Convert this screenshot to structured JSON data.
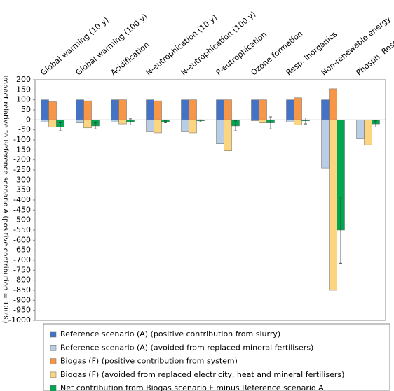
{
  "chart_data": {
    "type": "bar",
    "y_label": "Impact relative to Reference scenario A (positive contribution = 100%)",
    "categories": [
      "Global warming (10 y)",
      "Global warming (100 y)",
      "Acidification",
      "N-eutrophication (10 y)",
      "N-eutrophication (100 y)",
      "P-eutrophication",
      "Ozone formation",
      "Resp. Inorganics",
      "Non-renewable energy",
      "Phosph. Resources"
    ],
    "series": [
      {
        "name": "Reference scenario (A)  (positive contribution from slurry)",
        "color": "#4472c4",
        "column": 0,
        "values": [
          100,
          100,
          100,
          100,
          100,
          100,
          100,
          100,
          100,
          0
        ]
      },
      {
        "name": "Reference scenario (A)  (avoided from replaced mineral fertilisers)",
        "color": "#b9cde5",
        "column": 0,
        "values": [
          -10,
          -15,
          -10,
          -60,
          -60,
          -120,
          -5,
          -10,
          -240,
          -95
        ]
      },
      {
        "name": "Biogas (F)  (positive contribution from system)",
        "color": "#f79646",
        "column": 1,
        "values": [
          90,
          95,
          100,
          95,
          100,
          100,
          100,
          110,
          155,
          0
        ]
      },
      {
        "name": "Biogas (F)  (avoided from replaced electricity, heat and mineral fertilisers)",
        "color": "#fcd581",
        "column": 1,
        "values": [
          -35,
          -40,
          -20,
          -65,
          -65,
          -155,
          -15,
          -25,
          -850,
          -125
        ]
      },
      {
        "name": "Net contribution from Biogas scenario F minus Reference scenario A",
        "color": "#00a650",
        "column": 2,
        "values": [
          -35,
          -30,
          -10,
          -10,
          -5,
          -30,
          -15,
          -5,
          -550,
          -20
        ],
        "errors": [
          20,
          15,
          15,
          5,
          5,
          25,
          30,
          15,
          165,
          15
        ]
      }
    ],
    "ylim": [
      -1000,
      200
    ],
    "yticks": [
      200,
      150,
      100,
      50,
      0,
      -50,
      -100,
      -150,
      -200,
      -250,
      -300,
      -350,
      -400,
      -450,
      -500,
      -550,
      -600,
      -650,
      -700,
      -750,
      -800,
      -850,
      -900,
      -950,
      -1000
    ],
    "grid": false
  }
}
